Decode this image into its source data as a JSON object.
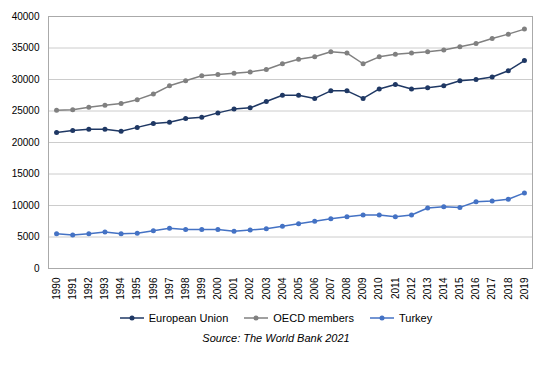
{
  "chart_data": {
    "type": "line",
    "x": [
      1990,
      1991,
      1992,
      1993,
      1994,
      1995,
      1996,
      1997,
      1998,
      1999,
      2000,
      2001,
      2002,
      2003,
      2004,
      2005,
      2006,
      2007,
      2008,
      2009,
      2010,
      2011,
      2012,
      2013,
      2014,
      2015,
      2016,
      2017,
      2018,
      2019
    ],
    "series": [
      {
        "name": "European Union",
        "color": "#1f3864",
        "marker": "circle",
        "line_style": "solid",
        "values": [
          21600,
          21900,
          22100,
          22100,
          21800,
          22400,
          23000,
          23200,
          23800,
          24000,
          24700,
          25300,
          25500,
          26500,
          27500,
          27500,
          27000,
          28200,
          28200,
          27000,
          28500,
          29200,
          28500,
          28700,
          29000,
          29800,
          30000,
          30400,
          31400,
          33000
        ]
      },
      {
        "name": "OECD members",
        "color": "#808080",
        "marker": "circle",
        "line_style": "solid",
        "values": [
          25100,
          25200,
          25600,
          25900,
          26200,
          26800,
          27700,
          29000,
          29800,
          30600,
          30800,
          31000,
          31200,
          31600,
          32500,
          33200,
          33600,
          34400,
          34200,
          32500,
          33600,
          34000,
          34200,
          34400,
          34700,
          35200,
          35700,
          36500,
          37200,
          38000
        ]
      },
      {
        "name": "Turkey",
        "color": "#4472c4",
        "marker": "circle",
        "line_style": "solid",
        "values": [
          5500,
          5300,
          5500,
          5800,
          5500,
          5600,
          6000,
          6400,
          6200,
          6200,
          6200,
          5900,
          6100,
          6300,
          6700,
          7100,
          7500,
          7900,
          8200,
          8500,
          8500,
          8200,
          8500,
          9600,
          9800,
          9700,
          10600,
          10700,
          11000,
          12000
        ]
      }
    ],
    "xlim": [
      1989.5,
      2019.5
    ],
    "xticks": [
      1990,
      1991,
      1992,
      1993,
      1994,
      1995,
      1996,
      1997,
      1998,
      1999,
      2000,
      2001,
      2002,
      2003,
      2004,
      2005,
      2006,
      2007,
      2008,
      2009,
      2010,
      2011,
      2012,
      2013,
      2014,
      2015,
      2016,
      2017,
      2018,
      2019
    ],
    "ylim": [
      0,
      40000
    ],
    "yticks": [
      0,
      5000,
      10000,
      15000,
      20000,
      25000,
      30000,
      35000,
      40000
    ],
    "grid": true,
    "legend": "bottom",
    "source": "Source: The World Bank 2021"
  }
}
